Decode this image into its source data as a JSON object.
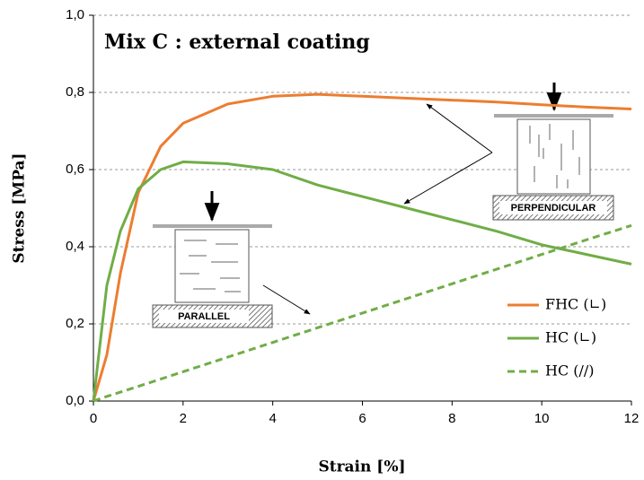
{
  "chart_data": {
    "type": "line",
    "title": "Mix C : external coating",
    "x_label": "Strain [%]",
    "y_label": "Stress [MPa]",
    "annotations": [
      "PERPENDICULAR",
      "PARALLEL"
    ],
    "x": [
      0,
      0.3,
      0.6,
      1,
      1.5,
      2,
      3,
      4,
      5,
      6,
      7,
      8,
      9,
      10,
      11,
      12
    ],
    "series": [
      {
        "name": "FHC (∟)",
        "color": "#ed7d31",
        "dash": false,
        "values": [
          0,
          0.12,
          0.33,
          0.54,
          0.66,
          0.72,
          0.77,
          0.79,
          0.795,
          0.79,
          0.785,
          0.78,
          0.775,
          0.768,
          0.762,
          0.757
        ]
      },
      {
        "name": "HC (∟)",
        "color": "#70ad47",
        "dash": false,
        "values": [
          0,
          0.3,
          0.44,
          0.55,
          0.6,
          0.62,
          0.615,
          0.6,
          0.56,
          0.53,
          0.5,
          0.47,
          0.44,
          0.405,
          0.38,
          0.355
        ]
      },
      {
        "name": "HC (//)",
        "color": "#70ad47",
        "dash": true,
        "values": [
          0,
          0.012,
          0.023,
          0.038,
          0.057,
          0.076,
          0.114,
          0.152,
          0.19,
          0.228,
          0.266,
          0.304,
          0.342,
          0.38,
          0.418,
          0.455
        ]
      }
    ],
    "xlim": [
      0,
      12
    ],
    "xticks": [
      0,
      2,
      4,
      6,
      8,
      10,
      12
    ],
    "ylim": [
      0,
      1
    ],
    "yticks": [
      {
        "value": 0,
        "label": "0,0"
      },
      {
        "value": 0.2,
        "label": "0,2"
      },
      {
        "value": 0.4,
        "label": "0,4"
      },
      {
        "value": 0.6,
        "label": "0,6"
      },
      {
        "value": 0.8,
        "label": "0,8"
      },
      {
        "value": 1,
        "label": "1,0"
      }
    ],
    "grid": true,
    "legend": "lower right"
  }
}
